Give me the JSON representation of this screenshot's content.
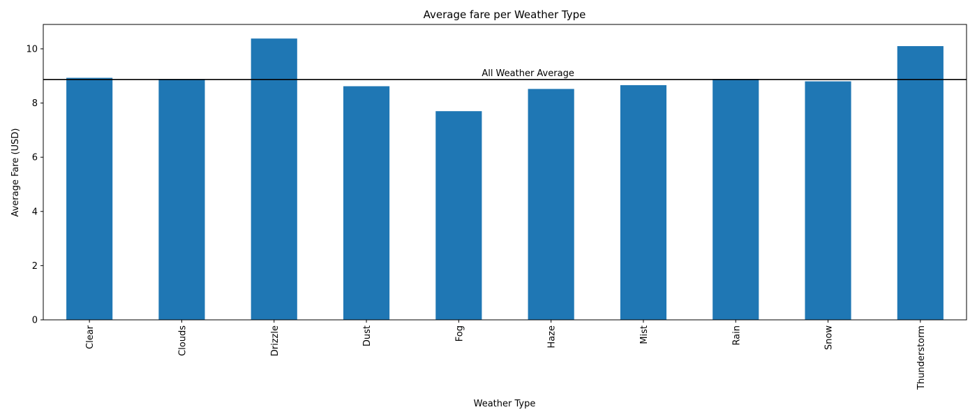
{
  "chart_data": {
    "type": "bar",
    "title": "Average fare per Weather Type",
    "xlabel": "Weather Type",
    "ylabel": "Average Fare (USD)",
    "categories": [
      "Clear",
      "Clouds",
      "Drizzle",
      "Dust",
      "Fog",
      "Haze",
      "Mist",
      "Rain",
      "Snow",
      "Thunderstorm"
    ],
    "values": [
      8.93,
      8.87,
      10.38,
      8.62,
      7.7,
      8.52,
      8.66,
      8.88,
      8.8,
      10.1
    ],
    "ylim": [
      0,
      10.9
    ],
    "yticks": [
      0,
      2,
      4,
      6,
      8,
      10
    ],
    "reference_line": {
      "label": "All Weather Average",
      "value": 8.87,
      "color": "#000000"
    },
    "bar_color": "#1f77b4",
    "grid": false,
    "legend": "none"
  }
}
